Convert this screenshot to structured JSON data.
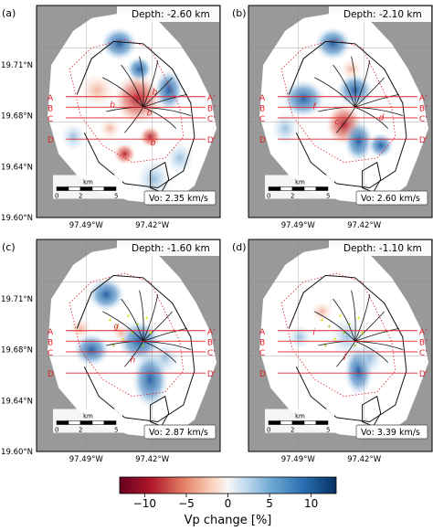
{
  "panels": [
    {
      "label": "(a)",
      "depth": "Depth: -2.60 km",
      "vo": "Vo: 2.35 km/s",
      "ylabels": [
        "19.71°N",
        "19.68°N",
        "19.64°N",
        "19.60°N"
      ],
      "xlabels": [
        "97.49°W",
        "97.42°W"
      ],
      "letters": [
        "b",
        "b",
        "b",
        "b"
      ]
    },
    {
      "label": "(b)",
      "depth": "Depth: -2.10 km",
      "vo": "Vo: 2.60 km/s",
      "ylabels": [],
      "xlabels": [
        "97.49°W",
        "97.42°W"
      ],
      "letters": [
        "f",
        "c",
        "d"
      ]
    },
    {
      "label": "(c)",
      "depth": "Depth: -1.60 km",
      "vo": "Vo: 2.87 km/s",
      "ylabels": [
        "19.71°N",
        "19.68°N",
        "19.64°N",
        "19.60°N"
      ],
      "xlabels": [
        "97.49°W",
        "97.42°W"
      ],
      "letters": [
        "g",
        "h"
      ]
    },
    {
      "label": "(d)",
      "depth": "Depth: -1.10 km",
      "vo": "Vo: 3.39 km/s",
      "ylabels": [],
      "xlabels": [
        "97.49°W",
        "97.42°W"
      ],
      "letters": [
        "i",
        "j"
      ]
    }
  ],
  "profile_labels": {
    "left": [
      "A",
      "B",
      "C",
      "D"
    ],
    "right": [
      "A'",
      "B'",
      "C'",
      "D'"
    ]
  },
  "scalebar": {
    "unit": "km",
    "ticks": [
      "0",
      "2",
      "5"
    ]
  },
  "colorbar": {
    "label": "Vp change [%]",
    "ticks": [
      "−10",
      "−5",
      "0",
      "5",
      "10"
    ],
    "min": -13,
    "max": 13
  },
  "colors": {
    "positive": "#2f6fb0",
    "negative": "#b2182b",
    "profile": "#e0202a",
    "nodata": "#999999"
  }
}
